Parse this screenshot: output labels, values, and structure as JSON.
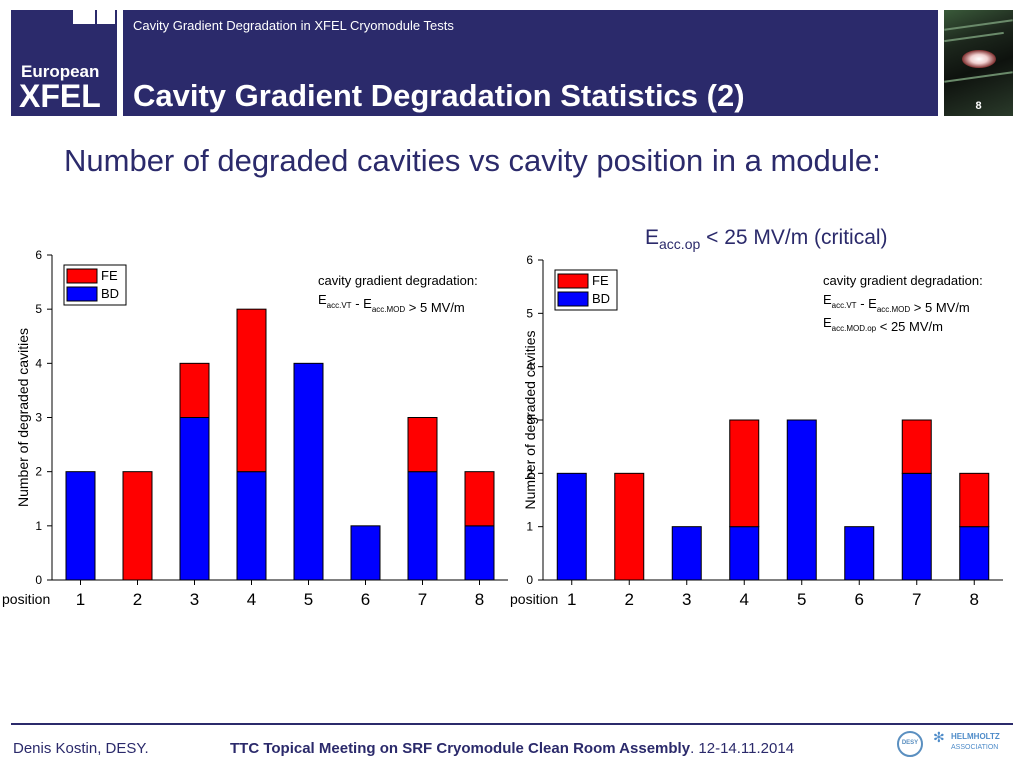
{
  "header": {
    "subtitle": "Cavity Gradient Degradation in XFEL Cryomodule Tests",
    "title": "Cavity Gradient Degradation Statistics (2)",
    "logo_line1": "European",
    "logo_line2": "XFEL",
    "page_number": "8"
  },
  "headline": "Number of degraded cavities vs cavity position in a module:",
  "right_heading": {
    "e": "E",
    "sub": "acc.op",
    "rest": " < 25 MV/m (critical)"
  },
  "colors": {
    "navy": "#2b2a6b",
    "fe": "#ff0000",
    "bd": "#0000ff"
  },
  "chart_data": [
    {
      "type": "bar",
      "stacked": true,
      "xlabel": "position",
      "ylabel": "Number of degraded cavities",
      "ylim": [
        0,
        6
      ],
      "yticks": [
        "0",
        "1",
        "2",
        "3",
        "4",
        "5",
        "6"
      ],
      "categories": [
        "1",
        "2",
        "3",
        "4",
        "5",
        "6",
        "7",
        "8"
      ],
      "series": [
        {
          "name": "BD",
          "values": [
            2,
            0,
            3,
            2,
            4,
            1,
            2,
            1
          ]
        },
        {
          "name": "FE",
          "values": [
            0,
            2,
            1,
            3,
            0,
            0,
            1,
            1
          ]
        }
      ],
      "legend": [
        "FE",
        "BD"
      ],
      "legend_position": "top-left",
      "annotation": {
        "line1": "cavity gradient degradation:",
        "lines": [
          {
            "parts": [
              [
                "E",
                ""
              ],
              [
                "acc.VT",
                "sub"
              ],
              [
                " - E",
                ""
              ],
              [
                "acc.MOD",
                "sub"
              ],
              [
                " > 5 MV/m",
                ""
              ]
            ]
          }
        ]
      }
    },
    {
      "type": "bar",
      "stacked": true,
      "xlabel": "position",
      "ylabel": "Number of degraded cavities",
      "ylim": [
        0,
        6
      ],
      "yticks": [
        "0",
        "1",
        "2",
        "3",
        "4",
        "5",
        "6"
      ],
      "categories": [
        "1",
        "2",
        "3",
        "4",
        "5",
        "6",
        "7",
        "8"
      ],
      "series": [
        {
          "name": "BD",
          "values": [
            2,
            0,
            1,
            1,
            3,
            1,
            2,
            1
          ]
        },
        {
          "name": "FE",
          "values": [
            0,
            2,
            0,
            2,
            0,
            0,
            1,
            1
          ]
        }
      ],
      "legend": [
        "FE",
        "BD"
      ],
      "legend_position": "top-left",
      "annotation": {
        "line1": "cavity gradient degradation:",
        "lines": [
          {
            "parts": [
              [
                "E",
                ""
              ],
              [
                "acc.VT",
                "sub"
              ],
              [
                " - E",
                ""
              ],
              [
                "acc.MOD",
                "sub"
              ],
              [
                " > 5 MV/m",
                ""
              ]
            ]
          },
          {
            "parts": [
              [
                "E",
                ""
              ],
              [
                "acc.MOD.op",
                "sub"
              ],
              [
                " < 25 MV/m",
                ""
              ]
            ]
          }
        ]
      }
    }
  ],
  "footer": {
    "author": "Denis Kostin, DESY.",
    "meeting": "TTC Topical Meeting on SRF Cryomodule Clean Room Assembly",
    "date": ". 12-14.11.2014",
    "logo_desy": "DESY",
    "logo_helmholtz_line1": "HELMHOLTZ",
    "logo_helmholtz_line2": "ASSOCIATION"
  }
}
